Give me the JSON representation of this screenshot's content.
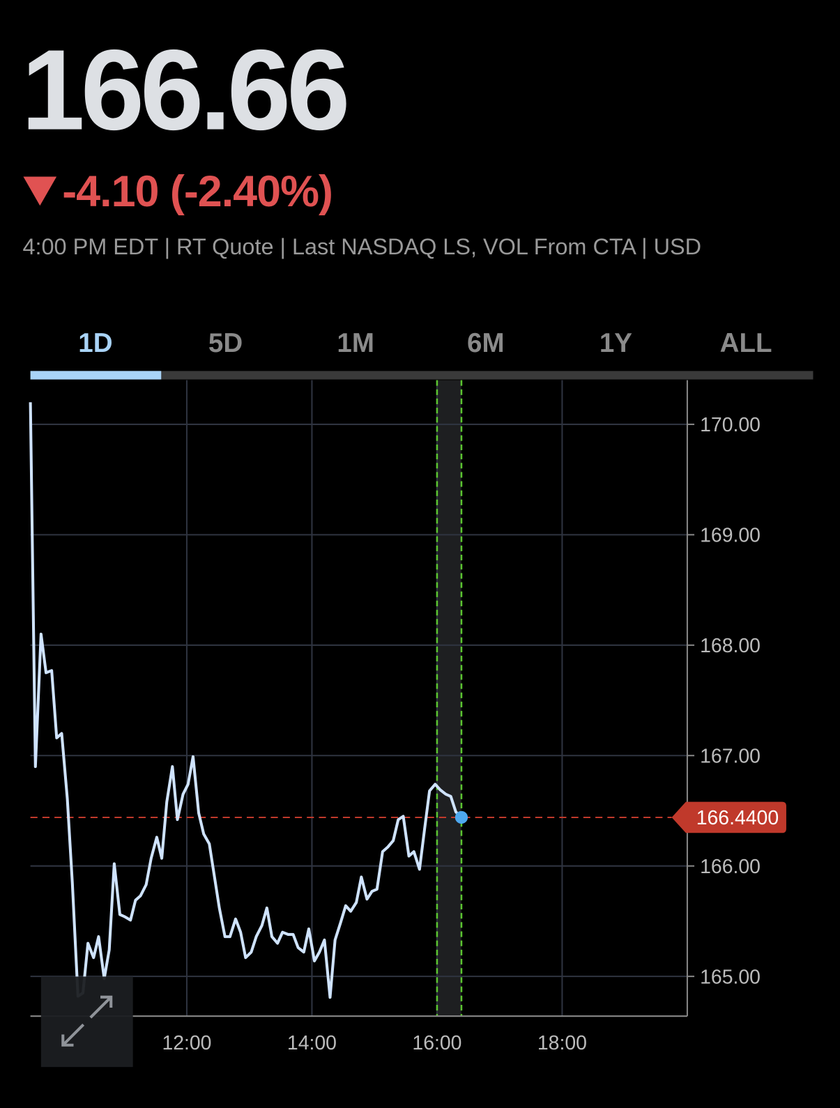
{
  "header": {
    "price": "166.66",
    "change": "-4.10 (-2.40%)",
    "info": "4:00 PM EDT | RT Quote | Last NASDAQ LS, VOL From CTA | USD"
  },
  "tabs": [
    "1D",
    "5D",
    "1M",
    "6M",
    "1Y",
    "ALL"
  ],
  "active_tab": 0,
  "chart_data": {
    "type": "line",
    "x": [
      9.5,
      9.58,
      9.67,
      9.75,
      9.84,
      9.92,
      10.0,
      10.09,
      10.17,
      10.26,
      10.34,
      10.42,
      10.51,
      10.59,
      10.68,
      10.76,
      10.84,
      10.93,
      11.01,
      11.1,
      11.18,
      11.26,
      11.35,
      11.43,
      11.52,
      11.6,
      11.68,
      11.77,
      11.85,
      11.94,
      12.02,
      12.1,
      12.19,
      12.27,
      12.36,
      12.44,
      12.52,
      12.61,
      12.69,
      12.78,
      12.86,
      12.94,
      13.03,
      13.11,
      13.2,
      13.28,
      13.36,
      13.45,
      13.53,
      13.62,
      13.7,
      13.78,
      13.87,
      13.95,
      14.04,
      14.12,
      14.2,
      14.29,
      14.37,
      14.46,
      14.54,
      14.62,
      14.71,
      14.79,
      14.88,
      14.96,
      15.04,
      15.13,
      15.21,
      15.3,
      15.38,
      15.46,
      15.55,
      15.63,
      15.72,
      15.8,
      15.88,
      15.97,
      16.05,
      16.14,
      16.22,
      16.3,
      16.39
    ],
    "series": [
      {
        "color": "#cfe3ff",
        "values": [
          170.2,
          166.9,
          168.1,
          167.75,
          167.77,
          167.16,
          167.2,
          166.61,
          165.85,
          164.82,
          164.85,
          165.3,
          165.17,
          165.36,
          164.98,
          165.24,
          166.02,
          165.56,
          165.54,
          165.51,
          165.69,
          165.73,
          165.83,
          166.07,
          166.26,
          166.07,
          166.58,
          166.9,
          166.42,
          166.65,
          166.74,
          166.99,
          166.48,
          166.29,
          166.2,
          165.91,
          165.62,
          165.36,
          165.36,
          165.52,
          165.4,
          165.17,
          165.22,
          165.36,
          165.46,
          165.62,
          165.36,
          165.3,
          165.4,
          165.38,
          165.38,
          165.26,
          165.22,
          165.43,
          165.14,
          165.22,
          165.33,
          164.81,
          165.33,
          165.49,
          165.64,
          165.59,
          165.67,
          165.9,
          165.7,
          165.77,
          165.79,
          166.13,
          166.17,
          166.23,
          166.42,
          166.45,
          166.09,
          166.13,
          165.97,
          166.33,
          166.68,
          166.74,
          166.69,
          166.65,
          166.63,
          166.49,
          166.44
        ]
      }
    ],
    "xlim": [
      9.5,
      20
    ],
    "ylim": [
      164.64,
      170.4
    ],
    "xticks": [
      {
        "value": 12,
        "label": "12:00"
      },
      {
        "value": 14,
        "label": "14:00"
      },
      {
        "value": 16,
        "label": "16:00"
      },
      {
        "value": 18,
        "label": "18:00"
      }
    ],
    "yticks": [
      {
        "value": 165,
        "label": "165.00"
      },
      {
        "value": 166,
        "label": "166.00"
      },
      {
        "value": 167,
        "label": "167.00"
      },
      {
        "value": 168,
        "label": "168.00"
      },
      {
        "value": 169,
        "label": "169.00"
      },
      {
        "value": 170,
        "label": "170.00"
      }
    ],
    "grid": true,
    "highlight": [
      16,
      16.39
    ],
    "last_value": 166.44,
    "last_label": "166.4400",
    "last_color": "#c0392b",
    "dot_color": "#4ea8ef"
  }
}
